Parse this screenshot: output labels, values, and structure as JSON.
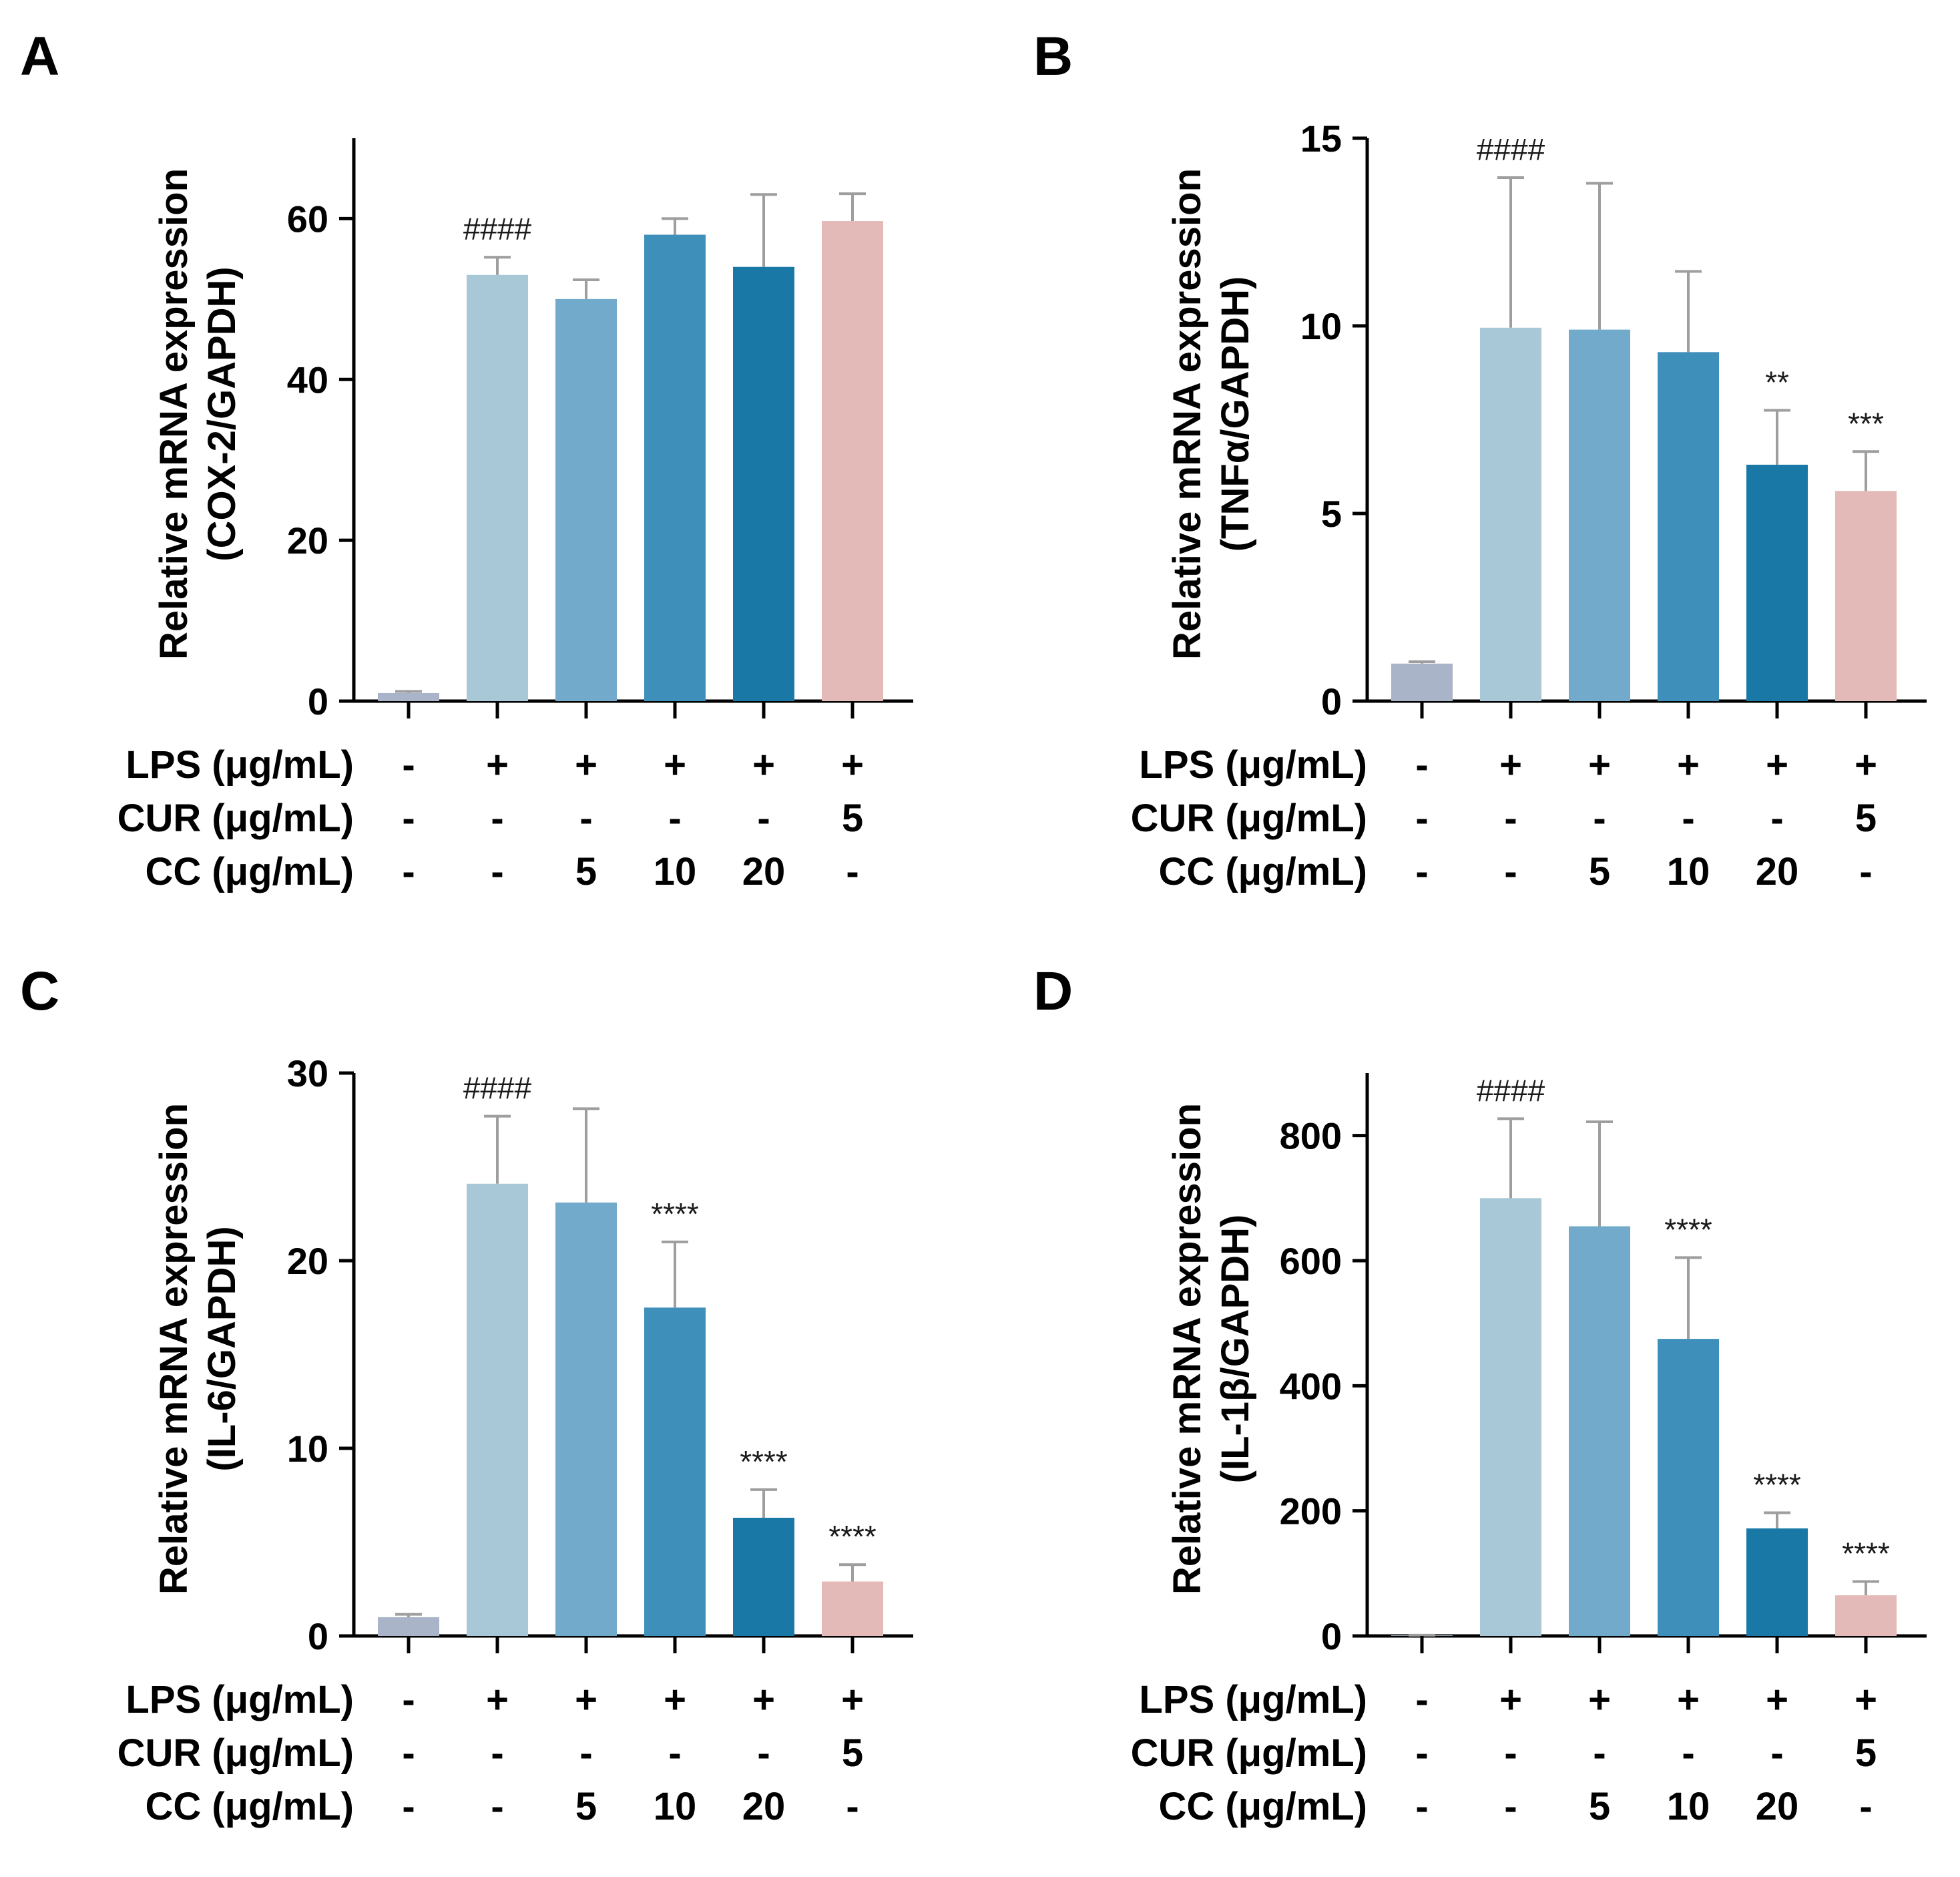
{
  "figure": {
    "panel_letters": [
      "A",
      "B",
      "C",
      "D"
    ]
  },
  "chart_data": [
    {
      "panel": "A",
      "type": "bar",
      "ylabel_line1": "Relative mRNA expression",
      "ylabel_line2": "(COX-2/GAPDH)",
      "ylim": [
        0,
        70
      ],
      "yticks": [
        0,
        20,
        40,
        60
      ],
      "values": [
        1.0,
        53,
        50,
        58,
        54,
        59.7
      ],
      "errors": [
        0.2,
        2.2,
        2.4,
        2.0,
        9.0,
        3.4
      ],
      "annotations": [
        "",
        "####",
        "",
        "",
        "",
        ""
      ],
      "colors": [
        "#a9b4c8",
        "#a8c8d8",
        "#72aacb",
        "#3f8fbb",
        "#1a78a7",
        "#e4bab8"
      ],
      "condition_rows": [
        {
          "label": "LPS (μg/mL)",
          "values": [
            "-",
            "+",
            "+",
            "+",
            "+",
            "+"
          ]
        },
        {
          "label": "CUR (μg/mL)",
          "values": [
            "-",
            "-",
            "-",
            "-",
            "-",
            "5"
          ]
        },
        {
          "label": "CC (μg/mL)",
          "values": [
            "-",
            "-",
            "5",
            "10",
            "20",
            "-"
          ]
        }
      ]
    },
    {
      "panel": "B",
      "type": "bar",
      "ylabel_line1": "Relative mRNA expression",
      "ylabel_line2": "(TNFα/GAPDH)",
      "ylim": [
        0,
        15
      ],
      "yticks": [
        0,
        5,
        10,
        15
      ],
      "values": [
        1.0,
        9.95,
        9.9,
        9.3,
        6.3,
        5.6
      ],
      "errors": [
        0.05,
        4.0,
        3.9,
        2.15,
        1.45,
        1.05
      ],
      "annotations": [
        "",
        "####",
        "",
        "",
        "**",
        "***"
      ],
      "colors": [
        "#a9b4c8",
        "#a8c8d8",
        "#72aacb",
        "#3f8fbb",
        "#1a78a7",
        "#e4bab8"
      ],
      "condition_rows": [
        {
          "label": "LPS (μg/mL)",
          "values": [
            "-",
            "+",
            "+",
            "+",
            "+",
            "+"
          ]
        },
        {
          "label": "CUR (μg/mL)",
          "values": [
            "-",
            "-",
            "-",
            "-",
            "-",
            "5"
          ]
        },
        {
          "label": "CC (μg/mL)",
          "values": [
            "-",
            "-",
            "5",
            "10",
            "20",
            "-"
          ]
        }
      ]
    },
    {
      "panel": "C",
      "type": "bar",
      "ylabel_line1": "Relative mRNA expression",
      "ylabel_line2": "(IL-6/GAPDH)",
      "ylim": [
        0,
        30
      ],
      "yticks": [
        0,
        10,
        20,
        30
      ],
      "values": [
        1.0,
        24.1,
        23.1,
        17.5,
        6.3,
        2.9
      ],
      "errors": [
        0.15,
        3.6,
        5.0,
        3.5,
        1.5,
        0.9
      ],
      "annotations": [
        "",
        "####",
        "",
        "****",
        "****",
        "****"
      ],
      "colors": [
        "#a9b4c8",
        "#a8c8d8",
        "#72aacb",
        "#3f8fbb",
        "#1a78a7",
        "#e4bab8"
      ],
      "condition_rows": [
        {
          "label": "LPS (μg/mL)",
          "values": [
            "-",
            "+",
            "+",
            "+",
            "+",
            "+"
          ]
        },
        {
          "label": "CUR (μg/mL)",
          "values": [
            "-",
            "-",
            "-",
            "-",
            "-",
            "5"
          ]
        },
        {
          "label": "CC (μg/mL)",
          "values": [
            "-",
            "-",
            "5",
            "10",
            "20",
            "-"
          ]
        }
      ]
    },
    {
      "panel": "D",
      "type": "bar",
      "ylabel_line1": "Relative mRNA expression",
      "ylabel_line2": "(IL-1β/GAPDH)",
      "ylim": [
        0,
        900
      ],
      "yticks": [
        0,
        200,
        400,
        600,
        800
      ],
      "values": [
        1.0,
        700,
        655,
        475,
        172,
        65
      ],
      "errors": [
        0.2,
        127,
        167,
        130,
        25,
        22
      ],
      "annotations": [
        "",
        "####",
        "",
        "****",
        "****",
        "****"
      ],
      "colors": [
        "#a9b4c8",
        "#a8c8d8",
        "#72aacb",
        "#3f8fbb",
        "#1a78a7",
        "#e4bab8"
      ],
      "condition_rows": [
        {
          "label": "LPS (μg/mL)",
          "values": [
            "-",
            "+",
            "+",
            "+",
            "+",
            "+"
          ]
        },
        {
          "label": "CUR (μg/mL)",
          "values": [
            "-",
            "-",
            "-",
            "-",
            "-",
            "5"
          ]
        },
        {
          "label": "CC (μg/mL)",
          "values": [
            "-",
            "-",
            "5",
            "10",
            "20",
            "-"
          ]
        }
      ]
    }
  ]
}
